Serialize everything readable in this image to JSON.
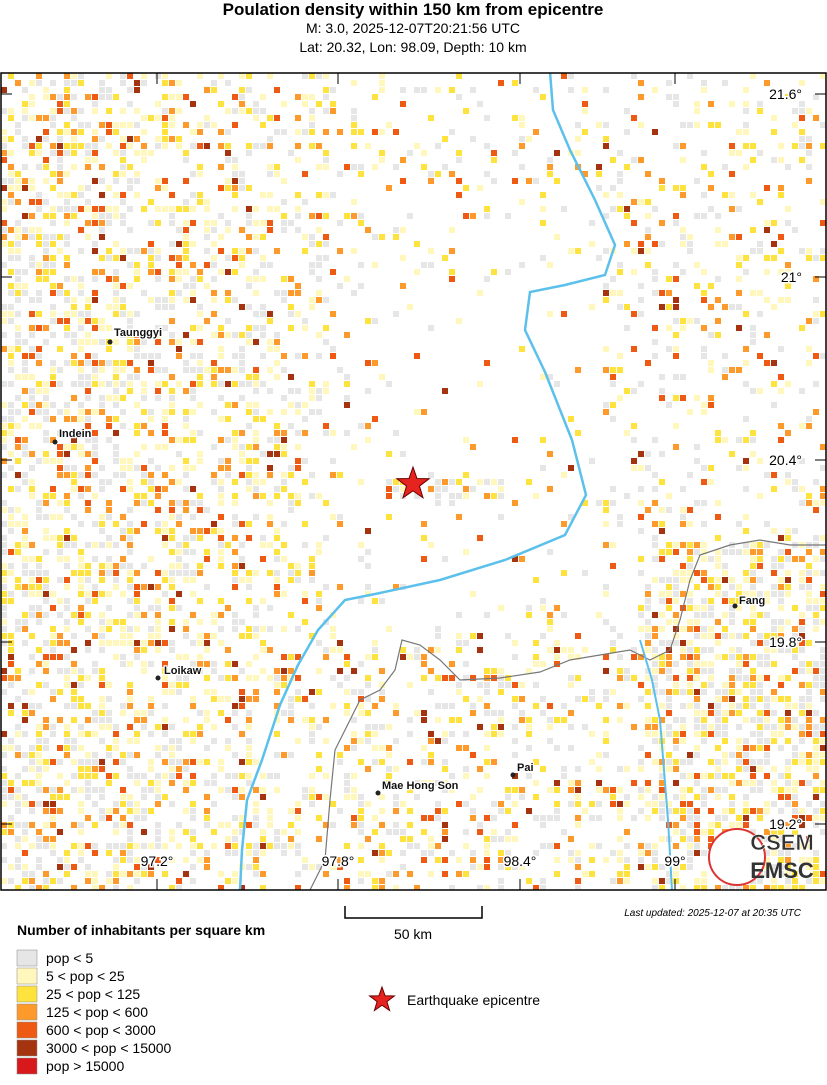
{
  "header": {
    "title": "Poulation density within 150 km from epicentre",
    "subtitle": "M: 3.0,  2025-12-07T20:21:56 UTC",
    "location": "Lat: 20.32, Lon: 98.09, Depth: 10 km"
  },
  "map": {
    "lat_labels": [
      "21.6°",
      "21°",
      "20.4°",
      "19.8°",
      "19.2°"
    ],
    "lon_labels": [
      "97.2°",
      "97.8°",
      "98.4°",
      "99°"
    ],
    "cities": [
      "Taunggyi",
      "Indein",
      "Loikaw",
      "Mae Hong Son",
      "Pai",
      "Fang"
    ],
    "scale_label": "50 km"
  },
  "footer": {
    "updated": "Last updated: 2025-12-07 at 20:35 UTC"
  },
  "logo": {
    "top": "CSEM",
    "bottom": "EMSC"
  },
  "legend": {
    "title": "Number of inhabitants per square km",
    "items": [
      "pop < 5",
      "5 < pop < 25",
      "25 < pop < 125",
      "125 < pop < 600",
      "600 < pop < 3000",
      "3000 < pop < 15000",
      "pop > 15000"
    ],
    "epicentre": "Earthquake epicentre"
  }
}
